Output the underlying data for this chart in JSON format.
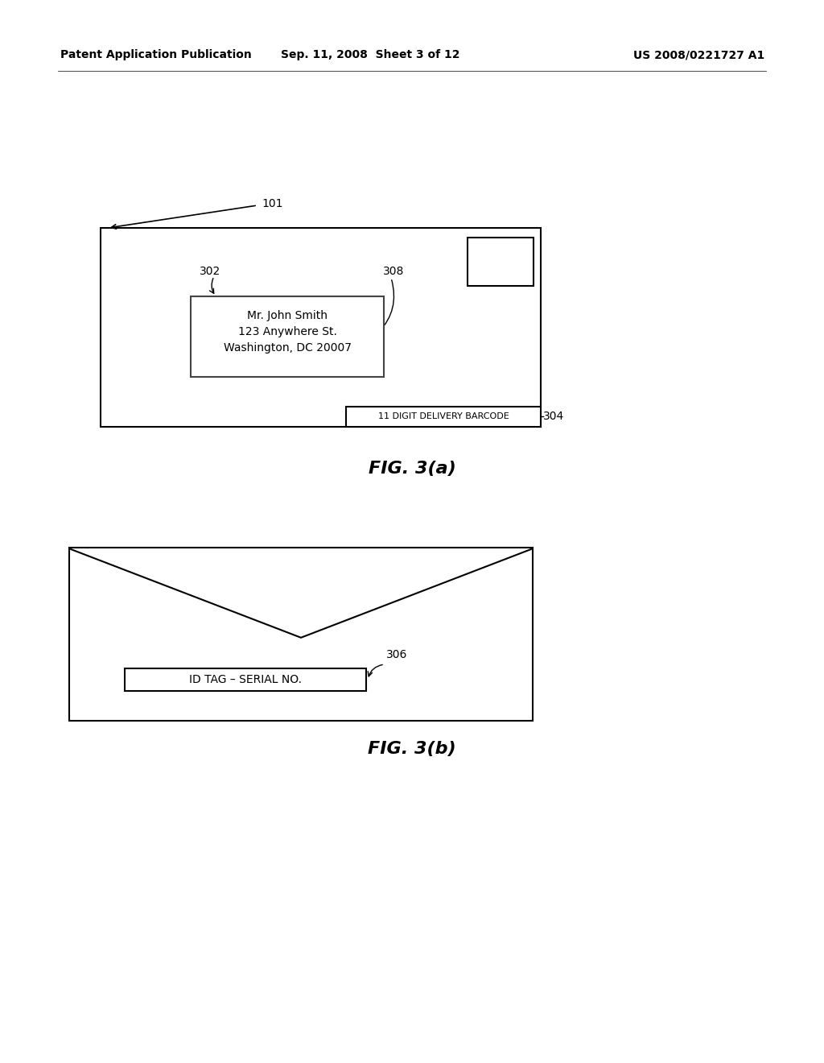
{
  "bg_color": "#ffffff",
  "header_left": "Patent Application Publication",
  "header_mid": "Sep. 11, 2008  Sheet 3 of 12",
  "header_right": "US 2008/0221727 A1",
  "fig_a_label": "FIG. 3(a)",
  "fig_b_label": "FIG. 3(b)"
}
